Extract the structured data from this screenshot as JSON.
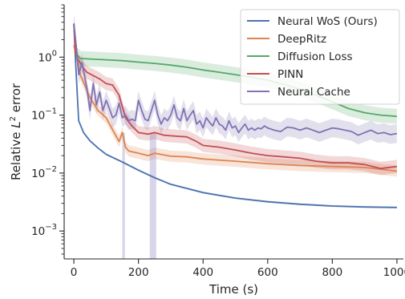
{
  "chart_data": {
    "type": "line",
    "xlabel": "Time (s)",
    "ylabel": "Relative L² error",
    "ylabel_parts": {
      "main": "Relative ",
      "sym": "L",
      "sup": "2",
      "tail": " error"
    },
    "xlim": [
      -30,
      1020
    ],
    "ylim": [
      0.00033,
      8
    ],
    "y_scale": "log",
    "x_ticks": [
      0,
      200,
      400,
      600,
      800,
      1000
    ],
    "x_tick_labels": [
      "0",
      "200",
      "400",
      "600",
      "800",
      "1000"
    ],
    "y_ticks": [
      0.001,
      0.01,
      0.1,
      1
    ],
    "y_tick_labels": [
      {
        "base": "10",
        "exp": "−3"
      },
      {
        "base": "10",
        "exp": "−2"
      },
      {
        "base": "10",
        "exp": "−1"
      },
      {
        "base": "10",
        "exp": "0"
      }
    ],
    "grid": false,
    "legend_position": "top-right",
    "series": [
      {
        "name": "Neural WoS (Ours)",
        "color": "#4C72B0",
        "x": [
          0,
          5,
          15,
          30,
          50,
          75,
          100,
          150,
          200,
          250,
          300,
          400,
          500,
          600,
          700,
          800,
          900,
          1000
        ],
        "y": [
          3.8,
          0.9,
          0.08,
          0.05,
          0.036,
          0.027,
          0.021,
          0.0155,
          0.0112,
          0.0083,
          0.0064,
          0.0046,
          0.0037,
          0.0032,
          0.0029,
          0.0027,
          0.0026,
          0.00255
        ]
      },
      {
        "name": "DeepRitz",
        "color": "#DD8452",
        "x": [
          0,
          10,
          20,
          50,
          75,
          100,
          125,
          140,
          150,
          160,
          170,
          200,
          230,
          250,
          300,
          350,
          400,
          500,
          600,
          700,
          800,
          900,
          1000
        ],
        "y": [
          1.6,
          0.95,
          0.5,
          0.2,
          0.12,
          0.09,
          0.05,
          0.035,
          0.05,
          0.028,
          0.024,
          0.022,
          0.02,
          0.022,
          0.0195,
          0.019,
          0.0175,
          0.016,
          0.0145,
          0.0135,
          0.013,
          0.0125,
          0.0108
        ]
      },
      {
        "name": "Diffusion Loss",
        "color": "#55A868",
        "x": [
          0,
          10,
          20,
          50,
          100,
          150,
          200,
          250,
          300,
          350,
          400,
          450,
          500,
          550,
          600,
          650,
          700,
          750,
          800,
          850,
          900,
          950,
          1000
        ],
        "y": [
          3.6,
          1.1,
          0.95,
          0.93,
          0.9,
          0.87,
          0.82,
          0.78,
          0.73,
          0.67,
          0.6,
          0.55,
          0.5,
          0.45,
          0.4,
          0.34,
          0.28,
          0.22,
          0.17,
          0.13,
          0.11,
          0.1,
          0.095
        ]
      },
      {
        "name": "PINN",
        "color": "#C44E52",
        "x": [
          0,
          5,
          12,
          25,
          40,
          60,
          80,
          100,
          120,
          140,
          160,
          180,
          200,
          230,
          250,
          280,
          300,
          350,
          380,
          400,
          450,
          500,
          550,
          600,
          650,
          700,
          750,
          800,
          850,
          900,
          950,
          1000
        ],
        "y": [
          3.8,
          1.2,
          0.95,
          0.7,
          0.55,
          0.48,
          0.42,
          0.35,
          0.33,
          0.22,
          0.09,
          0.065,
          0.05,
          0.047,
          0.05,
          0.045,
          0.044,
          0.042,
          0.035,
          0.03,
          0.028,
          0.025,
          0.022,
          0.02,
          0.019,
          0.018,
          0.016,
          0.015,
          0.015,
          0.014,
          0.012,
          0.013
        ]
      },
      {
        "name": "Neural Cache",
        "color": "#8172B3",
        "x": [
          0,
          8,
          15,
          25,
          40,
          50,
          60,
          70,
          80,
          90,
          100,
          110,
          120,
          130,
          140,
          150,
          160,
          170,
          180,
          190,
          200,
          210,
          220,
          230,
          240,
          250,
          260,
          270,
          280,
          290,
          300,
          310,
          320,
          330,
          340,
          350,
          360,
          370,
          380,
          390,
          400,
          410,
          420,
          430,
          440,
          450,
          460,
          470,
          480,
          490,
          500,
          510,
          520,
          530,
          540,
          550,
          560,
          570,
          580,
          590,
          600,
          620,
          640,
          660,
          680,
          700,
          720,
          740,
          760,
          780,
          800,
          820,
          840,
          860,
          880,
          900,
          920,
          940,
          960,
          980,
          1000
        ],
        "y": [
          3.8,
          1.4,
          0.5,
          0.8,
          0.3,
          0.12,
          0.35,
          0.15,
          0.25,
          0.12,
          0.18,
          0.13,
          0.09,
          0.1,
          0.16,
          0.09,
          0.1,
          0.08,
          0.085,
          0.08,
          0.18,
          0.12,
          0.085,
          0.08,
          0.12,
          0.18,
          0.1,
          0.07,
          0.09,
          0.08,
          0.1,
          0.15,
          0.09,
          0.08,
          0.13,
          0.08,
          0.1,
          0.12,
          0.07,
          0.08,
          0.06,
          0.09,
          0.075,
          0.065,
          0.09,
          0.07,
          0.065,
          0.055,
          0.08,
          0.06,
          0.065,
          0.05,
          0.06,
          0.07,
          0.055,
          0.06,
          0.055,
          0.06,
          0.058,
          0.065,
          0.06,
          0.055,
          0.052,
          0.062,
          0.06,
          0.055,
          0.06,
          0.055,
          0.05,
          0.055,
          0.06,
          0.058,
          0.055,
          0.052,
          0.045,
          0.05,
          0.055,
          0.048,
          0.05,
          0.046,
          0.048
        ]
      }
    ]
  }
}
